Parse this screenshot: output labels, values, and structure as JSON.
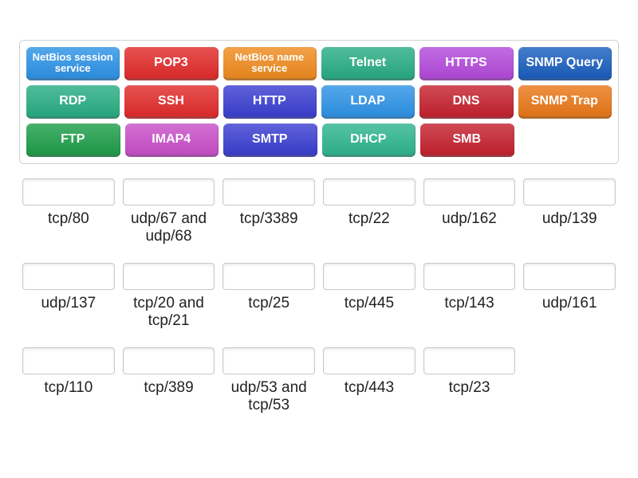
{
  "colors": {
    "blue": "#2e93e6",
    "red": "#e22b2b",
    "orange": "#ef8b1f",
    "teal": "#29ad83",
    "purple": "#b44adb",
    "darkblue": "#1b5fbf",
    "green": "#1f9e4a",
    "magenta": "#c94fc9",
    "indigo": "#3b3fd1",
    "tealalt": "#2fb58f",
    "crimson": "#c5222f",
    "orange2": "#e97818"
  },
  "tile_rows": [
    [
      {
        "label": "NetBios session service",
        "color": "blue",
        "small": true
      },
      {
        "label": "POP3",
        "color": "red"
      },
      {
        "label": "NetBios name service",
        "color": "orange",
        "small": true
      },
      {
        "label": "Telnet",
        "color": "teal"
      },
      {
        "label": "HTTPS",
        "color": "purple"
      },
      {
        "label": "SNMP Query",
        "color": "darkblue"
      }
    ],
    [
      {
        "label": "RDP",
        "color": "teal"
      },
      {
        "label": "SSH",
        "color": "red"
      },
      {
        "label": "HTTP",
        "color": "indigo"
      },
      {
        "label": "LDAP",
        "color": "blue"
      },
      {
        "label": "DNS",
        "color": "crimson"
      },
      {
        "label": "SNMP Trap",
        "color": "orange2"
      }
    ],
    [
      {
        "label": "FTP",
        "color": "green"
      },
      {
        "label": "IMAP4",
        "color": "magenta"
      },
      {
        "label": "SMTP",
        "color": "indigo"
      },
      {
        "label": "DHCP",
        "color": "tealalt"
      },
      {
        "label": "SMB",
        "color": "crimson"
      },
      {
        "label": "",
        "empty": true
      }
    ]
  ],
  "slot_rows": [
    [
      "tcp/80",
      "udp/67 and udp/68",
      "tcp/3389",
      "tcp/22",
      "udp/162",
      "udp/139"
    ],
    [
      "udp/137",
      "tcp/20 and tcp/21",
      "tcp/25",
      "tcp/445",
      "tcp/143",
      "udp/161"
    ],
    [
      "tcp/110",
      "tcp/389",
      "udp/53 and tcp/53",
      "tcp/443",
      "tcp/23",
      ""
    ]
  ]
}
